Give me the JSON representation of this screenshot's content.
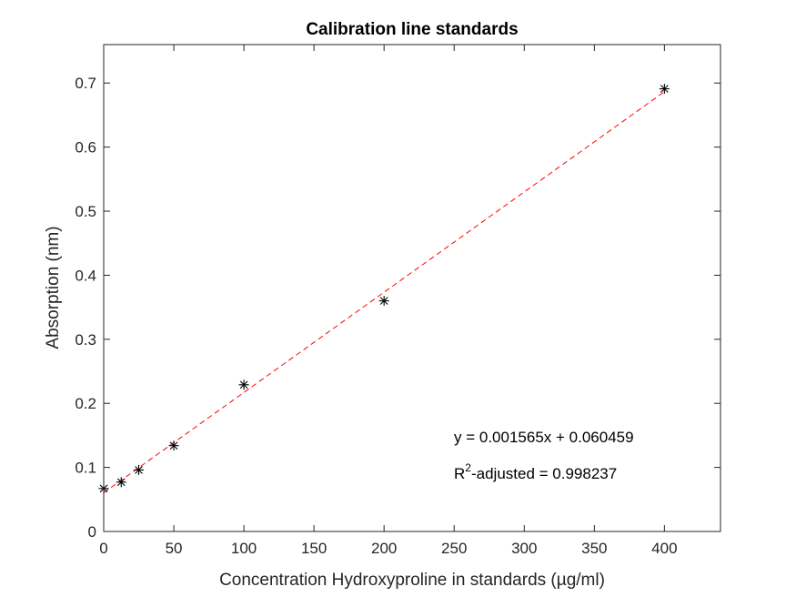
{
  "chart_data": {
    "type": "scatter",
    "title": "Calibration line standards",
    "xlabel": "Concentration Hydroxyproline in standards (µg/ml)",
    "ylabel": "Absorption (nm)",
    "xlim": [
      0,
      440
    ],
    "ylim": [
      0,
      0.76
    ],
    "xticks": [
      0,
      50,
      100,
      150,
      200,
      250,
      300,
      350,
      400
    ],
    "yticks": [
      0,
      0.1,
      0.2,
      0.3,
      0.4,
      0.5,
      0.6,
      0.7
    ],
    "xtick_labels": [
      "0",
      "50",
      "100",
      "150",
      "200",
      "250",
      "300",
      "350",
      "400"
    ],
    "ytick_labels": [
      "0",
      "0.1",
      "0.2",
      "0.3",
      "0.4",
      "0.5",
      "0.6",
      "0.7"
    ],
    "grid": false,
    "series": [
      {
        "marker": "asterisk",
        "color": "#000000",
        "x": [
          0,
          12.5,
          25,
          50,
          100,
          200,
          400
        ],
        "y": [
          0.067,
          0.077,
          0.096,
          0.134,
          0.229,
          0.36,
          0.691
        ]
      }
    ],
    "fit_line": {
      "style": "dashed",
      "color": "#ff0000",
      "slope": 0.001565,
      "intercept": 0.060459,
      "x_range": [
        0,
        400
      ]
    },
    "annotations": {
      "equation": "y = 0.001565x + 0.060459",
      "r2_base": "R",
      "r2_sup": "2",
      "r2_rest": "-adjusted = 0.998237"
    }
  }
}
